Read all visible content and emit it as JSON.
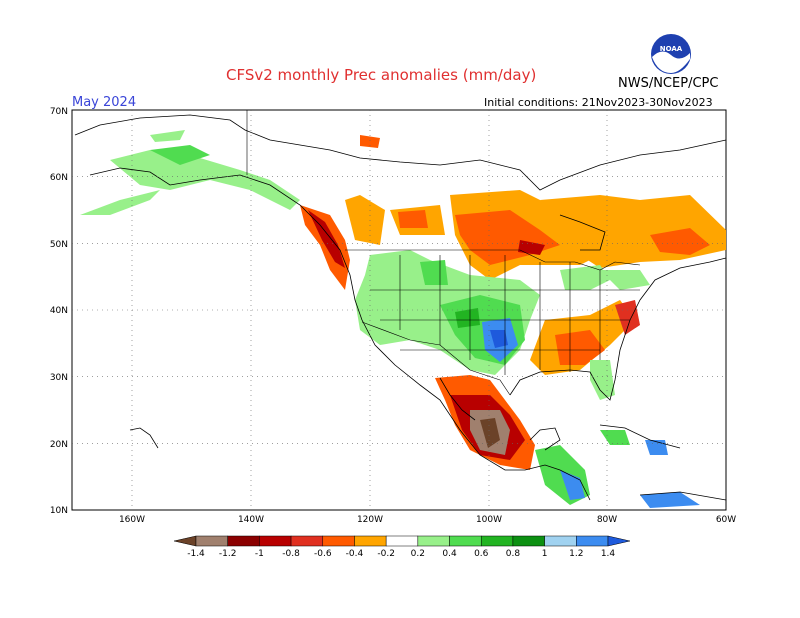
{
  "title": "CFSv2 monthly Prec anomalies (mm/day)",
  "month": "May 2024",
  "initial_conditions": "Initial conditions: 21Nov2023-30Nov2023",
  "agency": "NWS/NCEP/CPC",
  "logo_text": "NOAA",
  "axes": {
    "lat_labels": [
      "70N",
      "60N",
      "50N",
      "40N",
      "30N",
      "20N",
      "10N"
    ],
    "lon_labels": [
      "160W",
      "140W",
      "120W",
      "100W",
      "80W",
      "60W"
    ]
  },
  "colorbar": {
    "labels": [
      "-1.4",
      "-1.2",
      "-1",
      "-0.8",
      "-0.6",
      "-0.4",
      "-0.2",
      "0.2",
      "0.4",
      "0.6",
      "0.8",
      "1",
      "1.2",
      "1.4"
    ],
    "colors": [
      "#6b4228",
      "#a0806e",
      "#8b0000",
      "#b80000",
      "#e03020",
      "#ff5a00",
      "#ffa500",
      "#ffffff",
      "#98f08a",
      "#50dc50",
      "#22b422",
      "#0c9012",
      "#a0d2f0",
      "#3c8cf0",
      "#1e5adc"
    ]
  }
}
